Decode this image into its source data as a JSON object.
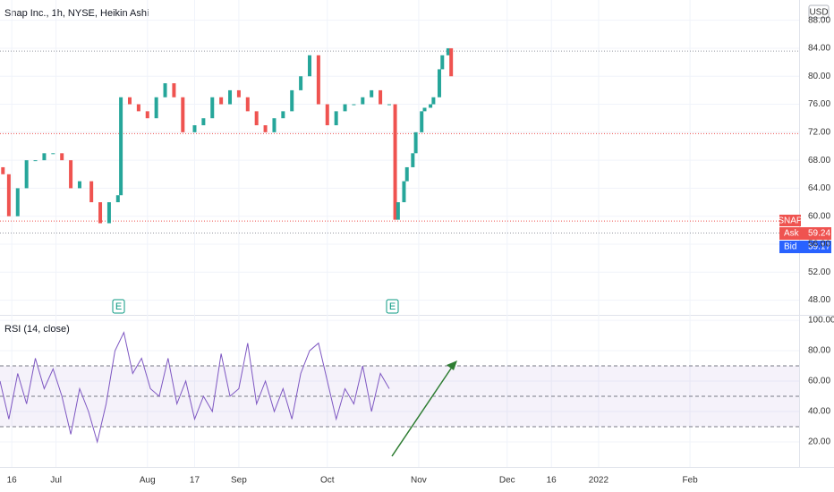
{
  "header": {
    "title": "Snap Inc., 1h, NYSE, Heikin Ashi",
    "currency": "USD"
  },
  "quote": {
    "symbol": "SNAP",
    "ask_label": "Ask",
    "ask": 59.24,
    "bid_label": "Bid",
    "bid": 59.17
  },
  "earnings": [
    "E",
    "E"
  ],
  "chart_data": [
    {
      "type": "candlestick",
      "x": [
        -18,
        -16,
        -13,
        -10,
        -7,
        -4,
        -1,
        2,
        5,
        8,
        12,
        15,
        18,
        21,
        22,
        25,
        28,
        31,
        34,
        37,
        40,
        43,
        47,
        50,
        53,
        56,
        59,
        62,
        65,
        68,
        71,
        74,
        77,
        80,
        83,
        86,
        89,
        92,
        95,
        98,
        101,
        104,
        107,
        110,
        113,
        115,
        116,
        118,
        119,
        121,
        122,
        124,
        125,
        127,
        128,
        130,
        131,
        133,
        134
      ],
      "open": [
        67,
        66,
        60,
        64,
        68,
        68,
        69,
        69,
        68,
        64,
        65,
        62,
        59,
        62,
        63,
        77,
        76,
        75,
        74,
        77,
        79,
        77,
        72,
        73,
        74,
        77,
        76,
        78,
        77,
        75,
        73,
        72,
        74,
        75,
        78,
        80,
        83,
        76,
        73,
        75,
        76,
        76,
        77,
        78,
        76,
        76,
        59.5,
        62,
        65,
        67,
        69,
        72,
        75,
        75.5,
        76,
        77,
        81,
        83,
        84
      ],
      "close": [
        66,
        60,
        64,
        68,
        68,
        69,
        69,
        68,
        64,
        65,
        62,
        59,
        62,
        63,
        77,
        76,
        75,
        74,
        77,
        79,
        77,
        72,
        73,
        74,
        77,
        76,
        78,
        77,
        75,
        73,
        72,
        74,
        75,
        78,
        80,
        83,
        76,
        73,
        75,
        76,
        76,
        77,
        78,
        76,
        76,
        59.5,
        62,
        65,
        67,
        69,
        72,
        75,
        75.5,
        76,
        77,
        81,
        83,
        84,
        80
      ],
      "up_color": "#26a69a",
      "down_color": "#ef5350",
      "xlim": [
        -19,
        252
      ],
      "xticks": [
        {
          "value": -15,
          "label": "16"
        },
        {
          "value": 0,
          "label": "Jul"
        },
        {
          "value": 31,
          "label": "Aug"
        },
        {
          "value": 47,
          "label": "17"
        },
        {
          "value": 62,
          "label": "Sep"
        },
        {
          "value": 92,
          "label": "Oct"
        },
        {
          "value": 123,
          "label": "Nov"
        },
        {
          "value": 153,
          "label": "Dec"
        },
        {
          "value": 168,
          "label": "16"
        },
        {
          "value": 184,
          "label": "2022"
        },
        {
          "value": 215,
          "label": "Feb"
        }
      ],
      "ylim": [
        45.9,
        90.9
      ],
      "yticks": [
        {
          "value": 48,
          "label": "48.00"
        },
        {
          "value": 52,
          "label": "52.00"
        },
        {
          "value": 56,
          "label": "56.00"
        },
        {
          "value": 60,
          "label": "60.00"
        },
        {
          "value": 64,
          "label": "64.00"
        },
        {
          "value": 68,
          "label": "68.00"
        },
        {
          "value": 72,
          "label": "72.00"
        },
        {
          "value": 76,
          "label": "76.00"
        },
        {
          "value": 80,
          "label": "80.00"
        },
        {
          "value": 84,
          "label": "84.00"
        },
        {
          "value": 88,
          "label": "88.00"
        }
      ],
      "levels": [
        {
          "value": 83.6,
          "color": "#9598a1"
        },
        {
          "value": 71.8,
          "color": "#ef5350"
        },
        {
          "value": 59.3,
          "color": "#ef5350"
        },
        {
          "value": 57.6,
          "color": "#9598a1"
        }
      ]
    },
    {
      "type": "line",
      "title": "RSI (14, close)",
      "x": [
        -19,
        -16,
        -13,
        -10,
        -7,
        -4,
        -1,
        2,
        5,
        8,
        11,
        14,
        17,
        20,
        23,
        26,
        29,
        32,
        35,
        38,
        41,
        44,
        47,
        50,
        53,
        56,
        59,
        62,
        65,
        68,
        71,
        74,
        77,
        80,
        83,
        86,
        89,
        92,
        95,
        98,
        101,
        104,
        107,
        110,
        113
      ],
      "values": [
        60,
        35,
        65,
        45,
        75,
        55,
        68,
        50,
        25,
        55,
        40,
        20,
        45,
        80,
        92,
        65,
        75,
        55,
        50,
        75,
        45,
        60,
        35,
        50,
        40,
        78,
        50,
        55,
        85,
        45,
        60,
        40,
        55,
        35,
        65,
        80,
        85,
        60,
        35,
        55,
        45,
        70,
        40,
        65,
        55
      ],
      "color": "#7e57c2",
      "ylim": [
        3.5,
        102.4
      ],
      "yticks": [
        {
          "value": 20,
          "label": "20.00"
        },
        {
          "value": 40,
          "label": "40.00"
        },
        {
          "value": 60,
          "label": "60.00"
        },
        {
          "value": 80,
          "label": "80.00"
        },
        {
          "value": 100,
          "label": "100.00"
        }
      ],
      "bands": [
        70,
        50,
        30
      ],
      "band_color": "#7e57c2"
    }
  ]
}
